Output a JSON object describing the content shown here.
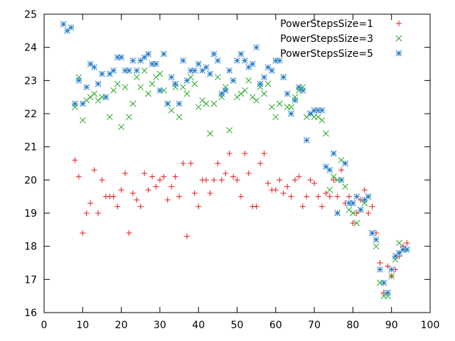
{
  "chart_data": {
    "type": "scatter",
    "title": "",
    "xlabel": "",
    "ylabel": "",
    "xlim": [
      0,
      100
    ],
    "ylim": [
      16,
      25
    ],
    "xticks": [
      0,
      10,
      20,
      30,
      40,
      50,
      60,
      70,
      80,
      90,
      100
    ],
    "yticks": [
      16,
      17,
      18,
      19,
      20,
      21,
      22,
      23,
      24,
      25
    ],
    "grid": false,
    "legend_position": "top-right",
    "series": [
      {
        "name": "PowerStepsSize=1",
        "color": "#e41a1c",
        "marker": "plus",
        "points": [
          [
            8,
            20.6
          ],
          [
            9,
            20.1
          ],
          [
            10,
            18.4
          ],
          [
            11,
            19.0
          ],
          [
            12,
            19.3
          ],
          [
            13,
            20.3
          ],
          [
            14,
            19.0
          ],
          [
            15,
            20.0
          ],
          [
            16,
            19.5
          ],
          [
            17,
            19.5
          ],
          [
            18,
            19.5
          ],
          [
            19,
            19.2
          ],
          [
            20,
            19.7
          ],
          [
            21,
            20.2
          ],
          [
            22,
            18.4
          ],
          [
            23,
            19.6
          ],
          [
            24,
            19.4
          ],
          [
            25,
            19.2
          ],
          [
            26,
            20.2
          ],
          [
            27,
            19.7
          ],
          [
            28,
            20.1
          ],
          [
            29,
            19.8
          ],
          [
            30,
            20.0
          ],
          [
            31,
            20.1
          ],
          [
            32,
            19.4
          ],
          [
            33,
            19.8
          ],
          [
            34,
            20.1
          ],
          [
            35,
            19.5
          ],
          [
            36,
            20.5
          ],
          [
            37,
            18.3
          ],
          [
            38,
            20.5
          ],
          [
            39,
            19.6
          ],
          [
            40,
            19.2
          ],
          [
            41,
            20.0
          ],
          [
            42,
            20.0
          ],
          [
            43,
            19.6
          ],
          [
            44,
            20.0
          ],
          [
            45,
            20.5
          ],
          [
            46,
            20.0
          ],
          [
            47,
            20.2
          ],
          [
            48,
            20.8
          ],
          [
            49,
            20.1
          ],
          [
            50,
            20.0
          ],
          [
            51,
            19.5
          ],
          [
            52,
            20.8
          ],
          [
            53,
            20.2
          ],
          [
            54,
            19.2
          ],
          [
            55,
            19.2
          ],
          [
            56,
            20.5
          ],
          [
            57,
            20.8
          ],
          [
            58,
            19.9
          ],
          [
            59,
            19.7
          ],
          [
            60,
            19.7
          ],
          [
            61,
            20.0
          ],
          [
            62,
            19.6
          ],
          [
            63,
            19.8
          ],
          [
            64,
            19.5
          ],
          [
            65,
            20.0
          ],
          [
            66,
            20.1
          ],
          [
            67,
            19.2
          ],
          [
            68,
            19.5
          ],
          [
            69,
            20.0
          ],
          [
            70,
            19.9
          ],
          [
            71,
            19.5
          ],
          [
            72,
            19.2
          ],
          [
            73,
            19.6
          ],
          [
            74,
            19.5
          ],
          [
            75,
            20.0
          ],
          [
            76,
            19.5
          ],
          [
            77,
            20.3
          ],
          [
            78,
            19.3
          ],
          [
            79,
            19.5
          ],
          [
            80,
            18.7
          ],
          [
            81,
            19.0
          ],
          [
            82,
            19.4
          ],
          [
            83,
            19.7
          ],
          [
            84,
            19.0
          ],
          [
            85,
            19.2
          ],
          [
            86,
            18.4
          ],
          [
            87,
            17.5
          ],
          [
            88,
            16.6
          ],
          [
            89,
            17.4
          ],
          [
            90,
            17.1
          ],
          [
            91,
            17.3
          ],
          [
            92,
            17.7
          ],
          [
            93,
            18.0
          ],
          [
            94,
            18.1
          ]
        ]
      },
      {
        "name": "PowerStepsSize=3",
        "color": "#21a821",
        "marker": "cross",
        "points": [
          [
            8,
            22.2
          ],
          [
            9,
            23.1
          ],
          [
            10,
            21.8
          ],
          [
            11,
            22.4
          ],
          [
            12,
            22.5
          ],
          [
            13,
            22.6
          ],
          [
            14,
            22.4
          ],
          [
            15,
            22.5
          ],
          [
            16,
            22.5
          ],
          [
            17,
            21.9
          ],
          [
            18,
            22.7
          ],
          [
            19,
            22.9
          ],
          [
            20,
            21.6
          ],
          [
            21,
            22.8
          ],
          [
            22,
            21.9
          ],
          [
            23,
            22.3
          ],
          [
            24,
            23.1
          ],
          [
            25,
            22.8
          ],
          [
            26,
            23.3
          ],
          [
            27,
            22.6
          ],
          [
            28,
            22.9
          ],
          [
            29,
            23.1
          ],
          [
            30,
            23.2
          ],
          [
            31,
            22.7
          ],
          [
            32,
            22.3
          ],
          [
            33,
            22.1
          ],
          [
            34,
            22.8
          ],
          [
            35,
            21.9
          ],
          [
            36,
            22.8
          ],
          [
            37,
            22.6
          ],
          [
            38,
            23.1
          ],
          [
            39,
            22.9
          ],
          [
            40,
            22.2
          ],
          [
            41,
            22.4
          ],
          [
            42,
            22.3
          ],
          [
            43,
            21.4
          ],
          [
            44,
            22.3
          ],
          [
            45,
            23.1
          ],
          [
            46,
            22.5
          ],
          [
            47,
            22.8
          ],
          [
            48,
            21.5
          ],
          [
            49,
            23.0
          ],
          [
            50,
            22.5
          ],
          [
            51,
            22.6
          ],
          [
            52,
            22.7
          ],
          [
            53,
            23.0
          ],
          [
            54,
            22.5
          ],
          [
            55,
            22.4
          ],
          [
            56,
            22.8
          ],
          [
            57,
            22.6
          ],
          [
            58,
            22.9
          ],
          [
            59,
            22.2
          ],
          [
            60,
            21.9
          ],
          [
            61,
            22.3
          ],
          [
            62,
            23.1
          ],
          [
            63,
            22.2
          ],
          [
            64,
            22.2
          ],
          [
            65,
            22.5
          ],
          [
            66,
            22.7
          ],
          [
            67,
            22.8
          ],
          [
            68,
            21.9
          ],
          [
            69,
            22.0
          ],
          [
            70,
            21.9
          ],
          [
            71,
            21.9
          ],
          [
            72,
            21.8
          ],
          [
            73,
            21.4
          ],
          [
            74,
            19.7
          ],
          [
            75,
            20.1
          ],
          [
            76,
            20.0
          ],
          [
            77,
            20.6
          ],
          [
            78,
            19.8
          ],
          [
            79,
            19.1
          ],
          [
            80,
            19.0
          ],
          [
            81,
            18.7
          ],
          [
            82,
            19.1
          ],
          [
            83,
            19.3
          ],
          [
            84,
            19.5
          ],
          [
            85,
            18.4
          ],
          [
            86,
            18.0
          ],
          [
            87,
            16.9
          ],
          [
            88,
            16.5
          ],
          [
            89,
            16.5
          ],
          [
            90,
            17.1
          ],
          [
            91,
            17.6
          ],
          [
            92,
            18.1
          ],
          [
            93,
            17.9
          ],
          [
            94,
            17.9
          ]
        ]
      },
      {
        "name": "PowerStepsSize=5",
        "color": "#1f78c8",
        "marker": "star",
        "points": [
          [
            5,
            24.7
          ],
          [
            6,
            24.5
          ],
          [
            7,
            24.6
          ],
          [
            8,
            22.3
          ],
          [
            9,
            23.0
          ],
          [
            10,
            22.3
          ],
          [
            11,
            22.8
          ],
          [
            12,
            23.5
          ],
          [
            13,
            23.4
          ],
          [
            14,
            22.9
          ],
          [
            15,
            23.2
          ],
          [
            16,
            22.5
          ],
          [
            17,
            23.2
          ],
          [
            18,
            23.3
          ],
          [
            19,
            23.7
          ],
          [
            20,
            23.7
          ],
          [
            21,
            23.3
          ],
          [
            22,
            23.3
          ],
          [
            23,
            23.6
          ],
          [
            24,
            23.3
          ],
          [
            25,
            23.6
          ],
          [
            26,
            23.7
          ],
          [
            27,
            23.8
          ],
          [
            28,
            23.5
          ],
          [
            29,
            23.5
          ],
          [
            30,
            22.7
          ],
          [
            31,
            23.8
          ],
          [
            32,
            22.3
          ],
          [
            33,
            23.1
          ],
          [
            34,
            22.9
          ],
          [
            35,
            22.3
          ],
          [
            36,
            23.6
          ],
          [
            37,
            23.0
          ],
          [
            38,
            23.3
          ],
          [
            39,
            23.3
          ],
          [
            40,
            23.5
          ],
          [
            41,
            23.3
          ],
          [
            42,
            23.4
          ],
          [
            43,
            23.2
          ],
          [
            44,
            23.8
          ],
          [
            45,
            23.6
          ],
          [
            46,
            22.6
          ],
          [
            47,
            22.7
          ],
          [
            48,
            23.3
          ],
          [
            49,
            23.0
          ],
          [
            50,
            23.6
          ],
          [
            51,
            23.8
          ],
          [
            52,
            23.6
          ],
          [
            53,
            23.4
          ],
          [
            54,
            23.5
          ],
          [
            55,
            24.0
          ],
          [
            56,
            22.9
          ],
          [
            57,
            23.1
          ],
          [
            58,
            23.4
          ],
          [
            59,
            23.3
          ],
          [
            60,
            23.6
          ],
          [
            61,
            23.6
          ],
          [
            62,
            23.1
          ],
          [
            63,
            22.6
          ],
          [
            64,
            22.0
          ],
          [
            65,
            22.4
          ],
          [
            66,
            22.8
          ],
          [
            67,
            22.7
          ],
          [
            68,
            21.2
          ],
          [
            69,
            22.0
          ],
          [
            70,
            22.1
          ],
          [
            71,
            22.1
          ],
          [
            72,
            22.1
          ],
          [
            73,
            20.4
          ],
          [
            74,
            20.3
          ],
          [
            75,
            20.8
          ],
          [
            76,
            19.0
          ],
          [
            77,
            20.0
          ],
          [
            78,
            20.5
          ],
          [
            79,
            19.3
          ],
          [
            80,
            19.3
          ],
          [
            81,
            19.5
          ],
          [
            82,
            19.1
          ],
          [
            83,
            19.4
          ],
          [
            84,
            19.5
          ],
          [
            85,
            18.4
          ],
          [
            86,
            18.2
          ],
          [
            87,
            17.3
          ],
          [
            88,
            16.9
          ],
          [
            89,
            16.6
          ],
          [
            90,
            17.3
          ],
          [
            91,
            17.7
          ],
          [
            92,
            17.8
          ],
          [
            93,
            17.9
          ],
          [
            94,
            17.9
          ]
        ]
      }
    ]
  }
}
